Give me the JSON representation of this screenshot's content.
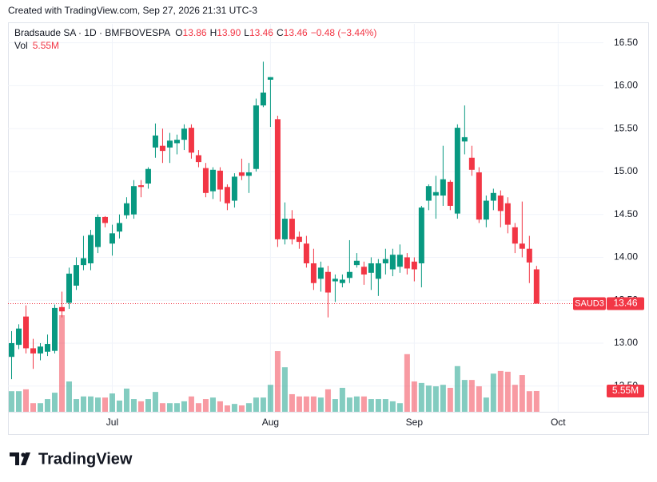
{
  "header": {
    "created": "Created with TradingView.com, Sep 27, 2026 21:31 UTC-3",
    "brand": "TradingView"
  },
  "chart_data": {
    "type": "candlestick",
    "title": "Bradsaude SA · 1D · BMFBOVESPA",
    "symbol": "SAUD3",
    "ohlc_letters": [
      "O",
      "H",
      "L",
      "C"
    ],
    "last_value_labels": {
      "open": "13.86",
      "high": "13.90",
      "low": "13.46",
      "close": "13.46"
    },
    "change_label": "−0.48 (−3.44%)",
    "volume_title": "Vol",
    "volume_label": "5.55M",
    "up_color": "#089981",
    "down_color": "#f23645",
    "grid": true,
    "open": [
      12.84,
      12.98,
      13.31,
      12.94,
      12.88,
      12.9,
      12.91,
      13.42,
      13.47,
      13.67,
      13.91,
      13.93,
      14.12,
      14.47,
      14.16,
      14.3,
      14.49,
      14.5,
      14.84,
      14.86,
      15.28,
      15.3,
      15.28,
      15.33,
      15.37,
      15.51,
      15.19,
      15.04,
      14.77,
      15.01,
      14.82,
      14.66,
      14.99,
      14.95,
      15.03,
      15.77,
      16.07,
      15.61,
      14.21,
      14.45,
      14.24,
      14.16,
      13.93,
      13.75,
      13.83,
      13.72,
      13.7,
      13.76,
      13.91,
      13.89,
      13.82,
      13.75,
      13.93,
      13.86,
      13.89,
      14.0,
      13.95,
      13.93,
      14.66,
      14.72,
      14.72,
      14.88,
      14.51,
      15.35,
      15.16,
      14.99,
      14.44,
      14.66,
      14.72,
      14.63,
      14.35,
      14.16,
      14.1,
      13.86
    ],
    "high": [
      13.14,
      13.22,
      13.44,
      13.05,
      13.0,
      13.1,
      13.45,
      13.6,
      13.88,
      14.0,
      14.25,
      14.32,
      14.5,
      14.48,
      14.38,
      14.5,
      14.7,
      14.9,
      14.9,
      15.05,
      15.56,
      15.5,
      15.45,
      15.43,
      15.55,
      15.55,
      15.25,
      15.1,
      15.05,
      15.05,
      14.85,
      14.98,
      15.15,
      15.1,
      15.85,
      16.28,
      16.1,
      15.65,
      14.64,
      14.55,
      14.3,
      14.25,
      14.1,
      13.95,
      13.9,
      13.8,
      13.8,
      14.2,
      14.05,
      13.95,
      14.0,
      13.98,
      14.1,
      14.1,
      14.15,
      14.05,
      14.0,
      14.6,
      14.85,
      14.95,
      15.3,
      14.9,
      15.55,
      15.77,
      15.3,
      15.05,
      14.72,
      14.8,
      14.78,
      14.7,
      14.4,
      14.65,
      14.25,
      13.9
    ],
    "low": [
      12.58,
      12.93,
      12.88,
      12.7,
      12.8,
      12.85,
      12.88,
      13.3,
      13.4,
      13.62,
      13.85,
      13.85,
      14.05,
      14.35,
      14.02,
      14.22,
      14.45,
      14.45,
      14.7,
      14.8,
      15.16,
      15.1,
      15.1,
      15.2,
      15.25,
      15.15,
      15.05,
      14.7,
      14.68,
      14.65,
      14.55,
      14.58,
      14.9,
      14.75,
      15.0,
      15.75,
      15.52,
      14.12,
      14.15,
      14.15,
      14.1,
      13.88,
      13.62,
      13.6,
      13.3,
      13.48,
      13.65,
      13.7,
      13.88,
      13.68,
      13.62,
      13.55,
      13.8,
      13.78,
      13.82,
      13.8,
      13.72,
      13.65,
      14.55,
      14.45,
      14.6,
      14.55,
      14.45,
      15.2,
      14.95,
      14.4,
      14.35,
      14.55,
      14.35,
      14.28,
      14.05,
      14.0,
      13.7,
      13.46
    ],
    "close": [
      13.0,
      13.17,
      12.94,
      12.88,
      12.96,
      12.99,
      13.41,
      13.37,
      13.81,
      13.91,
      13.99,
      14.26,
      14.47,
      14.4,
      14.28,
      14.4,
      14.63,
      14.83,
      14.82,
      15.03,
      15.42,
      15.24,
      15.36,
      15.37,
      15.5,
      15.22,
      15.11,
      14.75,
      15.02,
      14.79,
      14.63,
      14.94,
      14.95,
      14.99,
      15.77,
      15.92,
      16.1,
      14.21,
      14.45,
      14.21,
      14.18,
      13.93,
      13.7,
      13.88,
      13.59,
      13.75,
      13.74,
      13.83,
      13.96,
      13.8,
      13.93,
      13.93,
      13.98,
      14.03,
      14.03,
      13.87,
      13.86,
      14.58,
      14.83,
      14.76,
      14.91,
      14.6,
      15.51,
      15.4,
      15.02,
      14.44,
      14.66,
      14.75,
      14.54,
      14.38,
      14.16,
      14.1,
      13.94,
      13.46
    ],
    "volume": [
      5.5,
      5.5,
      6.0,
      2.3,
      2.3,
      3.4,
      5.1,
      25.8,
      8.1,
      3.4,
      4.1,
      4.1,
      3.8,
      3.8,
      4.9,
      3.0,
      6.2,
      3.4,
      2.8,
      3.4,
      5.3,
      2.3,
      2.3,
      2.3,
      2.8,
      4.1,
      2.3,
      3.4,
      3.8,
      2.8,
      1.7,
      2.1,
      1.7,
      2.3,
      3.8,
      3.8,
      7.2,
      16.2,
      11.9,
      4.7,
      4.1,
      4.1,
      4.1,
      3.8,
      6.0,
      3.4,
      6.4,
      3.8,
      4.1,
      4.1,
      3.4,
      3.4,
      3.4,
      2.8,
      2.3,
      15.4,
      8.1,
      7.7,
      7.0,
      6.8,
      7.2,
      6.4,
      12.2,
      8.5,
      8.5,
      6.8,
      3.8,
      10.2,
      10.9,
      10.7,
      7.2,
      9.8,
      5.5,
      5.55
    ],
    "xlim": [
      -0.5,
      82.3
    ],
    "xticks": [
      {
        "value": 14,
        "label": "Jul"
      },
      {
        "value": 36,
        "label": "Aug"
      },
      {
        "value": 56,
        "label": "Sep"
      },
      {
        "value": 76,
        "label": "Oct"
      }
    ],
    "ylim": [
      12.2,
      16.72
    ],
    "yticks": [
      {
        "value": 12.5,
        "label": "12.50"
      },
      {
        "value": 13,
        "label": "13.00"
      },
      {
        "value": 13.5,
        "label": "13.50"
      },
      {
        "value": 14,
        "label": "14.00"
      },
      {
        "value": 14.5,
        "label": "14.50"
      },
      {
        "value": 15,
        "label": "15.00"
      },
      {
        "value": 15.5,
        "label": "15.50"
      },
      {
        "value": 16,
        "label": "16.00"
      },
      {
        "value": 16.5,
        "label": "16.50"
      }
    ]
  }
}
